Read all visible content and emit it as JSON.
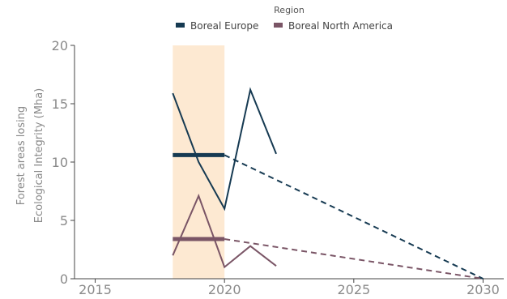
{
  "chart_data": {
    "type": "line",
    "legend": {
      "title": "Region",
      "placement": "top-center"
    },
    "ylabel_lines": [
      "Forest areas losing",
      "Ecological Integrity (Mha)"
    ],
    "xlabel": "",
    "xlim": [
      2014.2,
      2030.8
    ],
    "ylim": [
      0,
      20
    ],
    "x_ticks": [
      2015,
      2020,
      2025,
      2030
    ],
    "y_ticks": [
      0,
      5,
      10,
      15,
      20
    ],
    "highlight_band": {
      "x": [
        2018,
        2020
      ],
      "color": "#fde9d2"
    },
    "series": [
      {
        "name": "Boreal Europe",
        "color": "#163a52",
        "values": [
          {
            "x": 2018,
            "y": 15.9
          },
          {
            "x": 2019,
            "y": 10.0
          },
          {
            "x": 2020,
            "y": 6.0
          },
          {
            "x": 2021,
            "y": 16.2
          },
          {
            "x": 2022,
            "y": 10.7
          }
        ],
        "baseline": {
          "x": [
            2018,
            2020
          ],
          "y": 10.6
        },
        "target": {
          "x": [
            2020,
            2030
          ],
          "y": [
            10.6,
            0
          ]
        }
      },
      {
        "name": "Boreal North America",
        "color": "#7a5566",
        "values": [
          {
            "x": 2018,
            "y": 2.0
          },
          {
            "x": 2019,
            "y": 7.1
          },
          {
            "x": 2020,
            "y": 1.0
          },
          {
            "x": 2021,
            "y": 2.8
          },
          {
            "x": 2022,
            "y": 1.1
          }
        ],
        "baseline": {
          "x": [
            2018,
            2020
          ],
          "y": 3.4
        },
        "target": {
          "x": [
            2020,
            2030
          ],
          "y": [
            3.4,
            0
          ]
        }
      }
    ]
  }
}
